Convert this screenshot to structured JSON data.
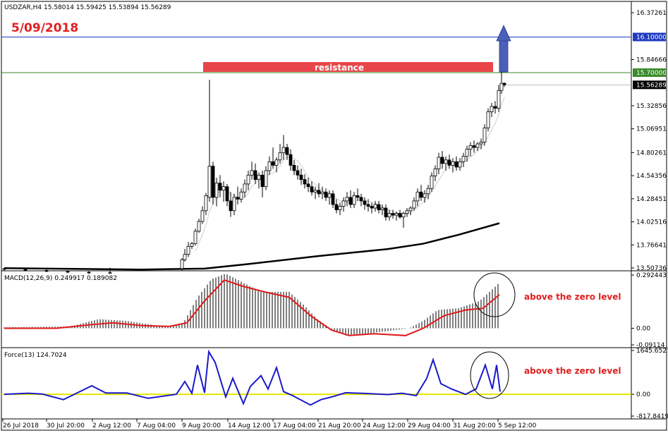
{
  "header": {
    "symbol_line": "USDZAR,H4  15.58014 15.59425 15.53894 15.56289",
    "date_label": "5/09/2018"
  },
  "price_panel": {
    "ticks": [
      "16.37261",
      "16.10000",
      "15.84666",
      "15.70000",
      "15.56289",
      "15.32856",
      "15.06951",
      "14.80261",
      "14.54356",
      "14.28451",
      "14.02516",
      "13.76641",
      "13.50736"
    ],
    "ylim": [
      13.50736,
      16.37261
    ],
    "level_blue": {
      "value": 16.1,
      "label": "16.10000",
      "color": "#1f3bbf"
    },
    "level_green": {
      "value": 15.7,
      "label": "15.70000",
      "color": "#3a8a2a"
    },
    "last_price": {
      "value": 15.56289,
      "label": "15.56289"
    },
    "resistance_label": "resistance",
    "resistance_color": "#e8464a",
    "arrow_color": "#4a5fb8",
    "candles": [
      {
        "t": 0,
        "o": 13.5,
        "h": 13.505,
        "l": 13.48,
        "c": 13.495
      },
      {
        "t": 30,
        "o": 13.49,
        "h": 13.498,
        "l": 13.47,
        "c": 13.485
      },
      {
        "t": 60,
        "o": 13.48,
        "h": 13.49,
        "l": 13.46,
        "c": 13.47
      },
      {
        "t": 90,
        "o": 13.47,
        "h": 13.48,
        "l": 13.45,
        "c": 13.46
      },
      {
        "t": 120,
        "o": 13.46,
        "h": 13.47,
        "l": 13.44,
        "c": 13.455
      },
      {
        "t": 150,
        "o": 13.45,
        "h": 13.51,
        "l": 13.44,
        "c": 13.455
      },
      {
        "t": 252,
        "o": 13.5,
        "h": 13.62,
        "l": 13.48,
        "c": 13.6
      },
      {
        "t": 256,
        "o": 13.6,
        "h": 13.72,
        "l": 13.58,
        "c": 13.66
      },
      {
        "t": 261,
        "o": 13.66,
        "h": 13.8,
        "l": 13.63,
        "c": 13.75
      },
      {
        "t": 266,
        "o": 13.75,
        "h": 13.8,
        "l": 13.72,
        "c": 13.78
      },
      {
        "t": 271,
        "o": 13.78,
        "h": 13.95,
        "l": 13.76,
        "c": 13.92
      },
      {
        "t": 276,
        "o": 13.92,
        "h": 14.06,
        "l": 13.9,
        "c": 14.03
      },
      {
        "t": 281,
        "o": 14.03,
        "h": 14.2,
        "l": 14.0,
        "c": 14.15
      },
      {
        "t": 286,
        "o": 14.15,
        "h": 14.35,
        "l": 14.1,
        "c": 14.32
      },
      {
        "t": 291,
        "o": 14.3,
        "h": 15.62,
        "l": 14.25,
        "c": 14.65
      },
      {
        "t": 296,
        "o": 14.65,
        "h": 14.7,
        "l": 14.22,
        "c": 14.3
      },
      {
        "t": 301,
        "o": 14.3,
        "h": 14.52,
        "l": 14.2,
        "c": 14.46
      },
      {
        "t": 306,
        "o": 14.46,
        "h": 14.55,
        "l": 14.3,
        "c": 14.38
      },
      {
        "t": 311,
        "o": 14.38,
        "h": 14.48,
        "l": 14.25,
        "c": 14.42
      },
      {
        "t": 316,
        "o": 14.42,
        "h": 14.45,
        "l": 14.2,
        "c": 14.26
      },
      {
        "t": 321,
        "o": 14.26,
        "h": 14.36,
        "l": 14.08,
        "c": 14.15
      },
      {
        "t": 326,
        "o": 14.15,
        "h": 14.34,
        "l": 14.1,
        "c": 14.3
      },
      {
        "t": 331,
        "o": 14.3,
        "h": 14.42,
        "l": 14.22,
        "c": 14.28
      },
      {
        "t": 336,
        "o": 14.28,
        "h": 14.4,
        "l": 14.24,
        "c": 14.36
      },
      {
        "t": 341,
        "o": 14.36,
        "h": 14.5,
        "l": 14.3,
        "c": 14.45
      },
      {
        "t": 346,
        "o": 14.45,
        "h": 14.6,
        "l": 14.38,
        "c": 14.55
      },
      {
        "t": 351,
        "o": 14.55,
        "h": 14.7,
        "l": 14.5,
        "c": 14.6
      },
      {
        "t": 356,
        "o": 14.6,
        "h": 14.68,
        "l": 14.45,
        "c": 14.5
      },
      {
        "t": 361,
        "o": 14.5,
        "h": 14.58,
        "l": 14.4,
        "c": 14.55
      },
      {
        "t": 366,
        "o": 14.55,
        "h": 14.6,
        "l": 14.3,
        "c": 14.42
      },
      {
        "t": 371,
        "o": 14.42,
        "h": 14.65,
        "l": 14.38,
        "c": 14.6
      },
      {
        "t": 376,
        "o": 14.6,
        "h": 14.76,
        "l": 14.55,
        "c": 14.7
      },
      {
        "t": 381,
        "o": 14.7,
        "h": 14.86,
        "l": 14.62,
        "c": 14.66
      },
      {
        "t": 386,
        "o": 14.66,
        "h": 14.75,
        "l": 14.58,
        "c": 14.72
      },
      {
        "t": 391,
        "o": 14.72,
        "h": 14.9,
        "l": 14.68,
        "c": 14.8
      },
      {
        "t": 396,
        "o": 14.8,
        "h": 15.0,
        "l": 14.72,
        "c": 14.86
      },
      {
        "t": 401,
        "o": 14.86,
        "h": 14.9,
        "l": 14.72,
        "c": 14.78
      },
      {
        "t": 406,
        "o": 14.78,
        "h": 14.84,
        "l": 14.6,
        "c": 14.66
      },
      {
        "t": 411,
        "o": 14.66,
        "h": 14.72,
        "l": 14.55,
        "c": 14.6
      },
      {
        "t": 416,
        "o": 14.6,
        "h": 14.66,
        "l": 14.5,
        "c": 14.55
      },
      {
        "t": 421,
        "o": 14.55,
        "h": 14.62,
        "l": 14.44,
        "c": 14.5
      },
      {
        "t": 426,
        "o": 14.5,
        "h": 14.56,
        "l": 14.4,
        "c": 14.45
      },
      {
        "t": 431,
        "o": 14.45,
        "h": 14.52,
        "l": 14.36,
        "c": 14.42
      },
      {
        "t": 436,
        "o": 14.42,
        "h": 14.48,
        "l": 14.32,
        "c": 14.36
      },
      {
        "t": 441,
        "o": 14.36,
        "h": 14.42,
        "l": 14.28,
        "c": 14.38
      },
      {
        "t": 446,
        "o": 14.38,
        "h": 14.46,
        "l": 14.3,
        "c": 14.34
      },
      {
        "t": 451,
        "o": 14.34,
        "h": 14.42,
        "l": 14.28,
        "c": 14.36
      },
      {
        "t": 456,
        "o": 14.36,
        "h": 14.4,
        "l": 14.26,
        "c": 14.3
      },
      {
        "t": 461,
        "o": 14.3,
        "h": 14.38,
        "l": 14.22,
        "c": 14.34
      },
      {
        "t": 466,
        "o": 14.34,
        "h": 14.38,
        "l": 14.18,
        "c": 14.22
      },
      {
        "t": 471,
        "o": 14.22,
        "h": 14.28,
        "l": 14.12,
        "c": 14.16
      },
      {
        "t": 476,
        "o": 14.16,
        "h": 14.24,
        "l": 14.1,
        "c": 14.2
      },
      {
        "t": 481,
        "o": 14.2,
        "h": 14.3,
        "l": 14.14,
        "c": 14.26
      },
      {
        "t": 486,
        "o": 14.26,
        "h": 14.36,
        "l": 14.2,
        "c": 14.3
      },
      {
        "t": 491,
        "o": 14.3,
        "h": 14.38,
        "l": 14.18,
        "c": 14.22
      },
      {
        "t": 496,
        "o": 14.22,
        "h": 14.36,
        "l": 14.18,
        "c": 14.32
      },
      {
        "t": 501,
        "o": 14.32,
        "h": 14.4,
        "l": 14.26,
        "c": 14.3
      },
      {
        "t": 506,
        "o": 14.3,
        "h": 14.34,
        "l": 14.2,
        "c": 14.26
      },
      {
        "t": 511,
        "o": 14.26,
        "h": 14.3,
        "l": 14.16,
        "c": 14.22
      },
      {
        "t": 516,
        "o": 14.22,
        "h": 14.28,
        "l": 14.14,
        "c": 14.2
      },
      {
        "t": 521,
        "o": 14.2,
        "h": 14.24,
        "l": 14.12,
        "c": 14.18
      },
      {
        "t": 526,
        "o": 14.18,
        "h": 14.26,
        "l": 14.14,
        "c": 14.22
      },
      {
        "t": 531,
        "o": 14.22,
        "h": 14.26,
        "l": 14.12,
        "c": 14.16
      },
      {
        "t": 536,
        "o": 14.16,
        "h": 14.22,
        "l": 14.1,
        "c": 14.18
      },
      {
        "t": 541,
        "o": 14.18,
        "h": 14.22,
        "l": 14.04,
        "c": 14.08
      },
      {
        "t": 546,
        "o": 14.08,
        "h": 14.16,
        "l": 14.04,
        "c": 14.12
      },
      {
        "t": 551,
        "o": 14.12,
        "h": 14.16,
        "l": 14.06,
        "c": 14.1
      },
      {
        "t": 556,
        "o": 14.1,
        "h": 14.14,
        "l": 14.04,
        "c": 14.12
      },
      {
        "t": 561,
        "o": 14.12,
        "h": 14.16,
        "l": 14.06,
        "c": 14.08
      },
      {
        "t": 566,
        "o": 14.08,
        "h": 14.14,
        "l": 13.96,
        "c": 14.12
      },
      {
        "t": 571,
        "o": 14.12,
        "h": 14.18,
        "l": 14.08,
        "c": 14.15
      },
      {
        "t": 576,
        "o": 14.15,
        "h": 14.2,
        "l": 14.1,
        "c": 14.18
      },
      {
        "t": 581,
        "o": 14.18,
        "h": 14.3,
        "l": 14.15,
        "c": 14.26
      },
      {
        "t": 586,
        "o": 14.26,
        "h": 14.4,
        "l": 14.2,
        "c": 14.36
      },
      {
        "t": 591,
        "o": 14.36,
        "h": 14.44,
        "l": 14.26,
        "c": 14.3
      },
      {
        "t": 596,
        "o": 14.3,
        "h": 14.38,
        "l": 14.24,
        "c": 14.34
      },
      {
        "t": 601,
        "o": 14.34,
        "h": 14.44,
        "l": 14.28,
        "c": 14.4
      },
      {
        "t": 606,
        "o": 14.4,
        "h": 14.58,
        "l": 14.36,
        "c": 14.54
      },
      {
        "t": 611,
        "o": 14.54,
        "h": 14.66,
        "l": 14.48,
        "c": 14.62
      },
      {
        "t": 616,
        "o": 14.62,
        "h": 14.8,
        "l": 14.56,
        "c": 14.75
      },
      {
        "t": 621,
        "o": 14.75,
        "h": 14.82,
        "l": 14.62,
        "c": 14.68
      },
      {
        "t": 626,
        "o": 14.68,
        "h": 14.76,
        "l": 14.6,
        "c": 14.72
      },
      {
        "t": 631,
        "o": 14.72,
        "h": 14.78,
        "l": 14.62,
        "c": 14.66
      },
      {
        "t": 636,
        "o": 14.66,
        "h": 14.74,
        "l": 14.58,
        "c": 14.7
      },
      {
        "t": 641,
        "o": 14.7,
        "h": 14.76,
        "l": 14.6,
        "c": 14.64
      },
      {
        "t": 646,
        "o": 14.64,
        "h": 14.74,
        "l": 14.6,
        "c": 14.7
      },
      {
        "t": 651,
        "o": 14.7,
        "h": 14.8,
        "l": 14.64,
        "c": 14.76
      },
      {
        "t": 656,
        "o": 14.76,
        "h": 14.88,
        "l": 14.7,
        "c": 14.84
      },
      {
        "t": 661,
        "o": 14.84,
        "h": 14.92,
        "l": 14.76,
        "c": 14.88
      },
      {
        "t": 666,
        "o": 14.88,
        "h": 14.94,
        "l": 14.8,
        "c": 14.86
      },
      {
        "t": 671,
        "o": 14.86,
        "h": 14.92,
        "l": 14.82,
        "c": 14.9
      },
      {
        "t": 676,
        "o": 14.9,
        "h": 14.96,
        "l": 14.84,
        "c": 14.92
      },
      {
        "t": 681,
        "o": 14.92,
        "h": 15.12,
        "l": 14.88,
        "c": 15.08
      },
      {
        "t": 686,
        "o": 15.08,
        "h": 15.3,
        "l": 15.04,
        "c": 15.26
      },
      {
        "t": 691,
        "o": 15.26,
        "h": 15.36,
        "l": 15.2,
        "c": 15.32
      },
      {
        "t": 696,
        "o": 15.32,
        "h": 15.38,
        "l": 15.24,
        "c": 15.3
      },
      {
        "t": 701,
        "o": 15.3,
        "h": 15.56,
        "l": 15.26,
        "c": 15.5
      },
      {
        "t": 705,
        "o": 15.5,
        "h": 15.72,
        "l": 15.46,
        "c": 15.58
      },
      {
        "t": 709,
        "o": 15.58,
        "h": 15.59,
        "l": 15.54,
        "c": 15.563
      }
    ]
  },
  "macd_panel": {
    "label": "MACD(12,26,9) 0.249917 0.189082",
    "ticks": [
      "0.292443",
      "0.00",
      "-0.09114"
    ],
    "ylim": [
      -0.09114,
      0.292443
    ],
    "signal_color": "#e01a1a",
    "annotation": "above the zero level"
  },
  "force_panel": {
    "label": "Force(13) 124.7024",
    "ticks": [
      "1645.6527",
      "0.00",
      "-817.8419"
    ],
    "ylim": [
      -817.8419,
      1645.6527
    ],
    "line_color": "#1a1acc",
    "zero_color": "#e6e600",
    "annotation": "above the zero level"
  },
  "x_axis": {
    "labels": [
      "26 Jul 2018",
      "30 Jul 20:00",
      "2 Aug 12:00",
      "7 Aug 04:00",
      "9 Aug 20:00",
      "14 Aug 12:00",
      "17 Aug 04:00",
      "21 Aug 20:00",
      "24 Aug 12:00",
      "29 Aug 04:00",
      "31 Aug 20:00",
      "5 Sep 12:00"
    ]
  },
  "chart_data": {
    "type": "candlestick",
    "title": "USDZAR,H4  15.58014 15.59425 15.53894 15.56289",
    "annotations": [
      "5/09/2018",
      "resistance",
      "above the zero level",
      "above the zero level"
    ],
    "levels": [
      16.1,
      15.7
    ],
    "indicators": [
      "MACD(12,26,9) 0.249917 0.189082",
      "Force(13) 124.7024"
    ]
  }
}
